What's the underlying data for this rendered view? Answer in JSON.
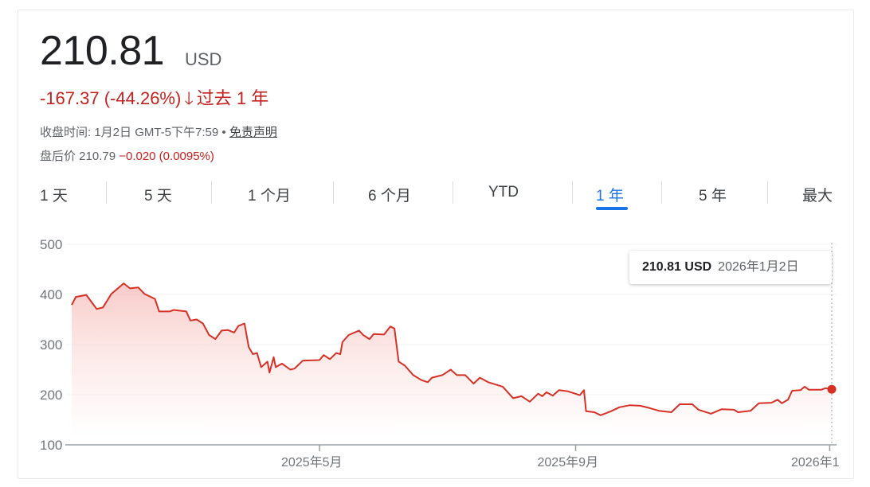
{
  "quote": {
    "price": "210.81",
    "currency": "USD",
    "change": "-167.37 (-44.26%)",
    "change_arrow_icon": "arrow-down-icon",
    "change_period": "过去 1 年",
    "close_info": "收盘时间: 1月2日 GMT-5下午7:59 •",
    "disclaimer_link": "免责声明",
    "after_hours_label": "盘后价 210.79",
    "after_hours_change": "−0.020 (0.0095%)"
  },
  "tabs": [
    {
      "label": "1 天"
    },
    {
      "label": "5 天"
    },
    {
      "label": "1 个月"
    },
    {
      "label": "6 个月"
    },
    {
      "label": "YTD"
    },
    {
      "label": "1 年",
      "active": true
    },
    {
      "label": "5 年"
    },
    {
      "label": "最大"
    }
  ],
  "tooltip": {
    "price": "210.81 USD",
    "date": "2026年1月2日"
  },
  "colors": {
    "line": "#d93025",
    "down": "#c5221f",
    "accent": "#1a73e8"
  },
  "chart_data": {
    "type": "area",
    "ylim": [
      100,
      500
    ],
    "yticks": [
      "500",
      "400",
      "300",
      "200",
      "100"
    ],
    "xticks": [
      {
        "date": "2025-05-01",
        "label": "2025年5月"
      },
      {
        "date": "2025-09-01",
        "label": "2025年9月"
      },
      {
        "date": "2026-01-01",
        "label": "2026年1"
      }
    ],
    "xlim": [
      "2025-01-02",
      "2026-01-02"
    ],
    "grid": true,
    "points": [
      [
        "2025-01-02",
        379
      ],
      [
        "2025-01-04",
        395
      ],
      [
        "2025-01-09",
        399
      ],
      [
        "2025-01-14",
        371
      ],
      [
        "2025-01-17",
        374
      ],
      [
        "2025-01-21",
        401
      ],
      [
        "2025-01-27",
        422
      ],
      [
        "2025-01-30",
        412
      ],
      [
        "2025-02-03",
        414
      ],
      [
        "2025-02-06",
        401
      ],
      [
        "2025-02-11",
        391
      ],
      [
        "2025-02-13",
        366
      ],
      [
        "2025-02-18",
        366
      ],
      [
        "2025-02-20",
        369
      ],
      [
        "2025-02-26",
        366
      ],
      [
        "2025-02-28",
        348
      ],
      [
        "2025-03-03",
        350
      ],
      [
        "2025-03-06",
        342
      ],
      [
        "2025-03-09",
        319
      ],
      [
        "2025-03-12",
        311
      ],
      [
        "2025-03-15",
        328
      ],
      [
        "2025-03-18",
        329
      ],
      [
        "2025-03-21",
        324
      ],
      [
        "2025-03-23",
        337
      ],
      [
        "2025-03-26",
        342
      ],
      [
        "2025-03-28",
        295
      ],
      [
        "2025-03-30",
        281
      ],
      [
        "2025-04-01",
        283
      ],
      [
        "2025-04-03",
        255
      ],
      [
        "2025-04-06",
        266
      ],
      [
        "2025-04-07",
        244
      ],
      [
        "2025-04-09",
        275
      ],
      [
        "2025-04-10",
        255
      ],
      [
        "2025-04-13",
        262
      ],
      [
        "2025-04-17",
        250
      ],
      [
        "2025-04-19",
        252
      ],
      [
        "2025-04-23",
        268
      ],
      [
        "2025-05-01",
        269
      ],
      [
        "2025-05-03",
        279
      ],
      [
        "2025-05-06",
        271
      ],
      [
        "2025-05-09",
        283
      ],
      [
        "2025-05-11",
        281
      ],
      [
        "2025-05-12",
        305
      ],
      [
        "2025-05-15",
        319
      ],
      [
        "2025-05-20",
        328
      ],
      [
        "2025-05-22",
        319
      ],
      [
        "2025-05-25",
        311
      ],
      [
        "2025-05-27",
        321
      ],
      [
        "2025-06-01",
        320
      ],
      [
        "2025-06-04",
        336
      ],
      [
        "2025-06-06",
        332
      ],
      [
        "2025-06-08",
        266
      ],
      [
        "2025-06-11",
        258
      ],
      [
        "2025-06-15",
        239
      ],
      [
        "2025-06-19",
        229
      ],
      [
        "2025-06-22",
        225
      ],
      [
        "2025-06-24",
        234
      ],
      [
        "2025-06-29",
        239
      ],
      [
        "2025-07-03",
        250
      ],
      [
        "2025-07-06",
        239
      ],
      [
        "2025-07-10",
        239
      ],
      [
        "2025-07-14",
        222
      ],
      [
        "2025-07-17",
        234
      ],
      [
        "2025-07-21",
        225
      ],
      [
        "2025-07-28",
        216
      ],
      [
        "2025-08-02",
        193
      ],
      [
        "2025-08-06",
        197
      ],
      [
        "2025-08-10",
        186
      ],
      [
        "2025-08-14",
        202
      ],
      [
        "2025-08-16",
        197
      ],
      [
        "2025-08-18",
        205
      ],
      [
        "2025-08-21",
        198
      ],
      [
        "2025-08-24",
        209
      ],
      [
        "2025-08-28",
        207
      ],
      [
        "2025-09-03",
        199
      ],
      [
        "2025-09-05",
        209
      ],
      [
        "2025-09-06",
        167
      ],
      [
        "2025-09-10",
        165
      ],
      [
        "2025-09-13",
        159
      ],
      [
        "2025-09-18",
        167
      ],
      [
        "2025-09-22",
        175
      ],
      [
        "2025-09-27",
        179
      ],
      [
        "2025-10-02",
        178
      ],
      [
        "2025-10-06",
        174
      ],
      [
        "2025-10-11",
        168
      ],
      [
        "2025-10-17",
        165
      ],
      [
        "2025-10-21",
        181
      ],
      [
        "2025-10-27",
        181
      ],
      [
        "2025-10-30",
        170
      ],
      [
        "2025-11-05",
        162
      ],
      [
        "2025-11-10",
        171
      ],
      [
        "2025-11-16",
        170
      ],
      [
        "2025-11-18",
        165
      ],
      [
        "2025-11-24",
        168
      ],
      [
        "2025-11-28",
        183
      ],
      [
        "2025-12-04",
        184
      ],
      [
        "2025-12-07",
        190
      ],
      [
        "2025-12-09",
        183
      ],
      [
        "2025-12-12",
        190
      ],
      [
        "2025-12-14",
        208
      ],
      [
        "2025-12-18",
        209
      ],
      [
        "2025-12-20",
        216
      ],
      [
        "2025-12-22",
        210
      ],
      [
        "2025-12-28",
        210
      ],
      [
        "2025-12-30",
        213
      ],
      [
        "2026-01-02",
        210.81
      ]
    ]
  }
}
